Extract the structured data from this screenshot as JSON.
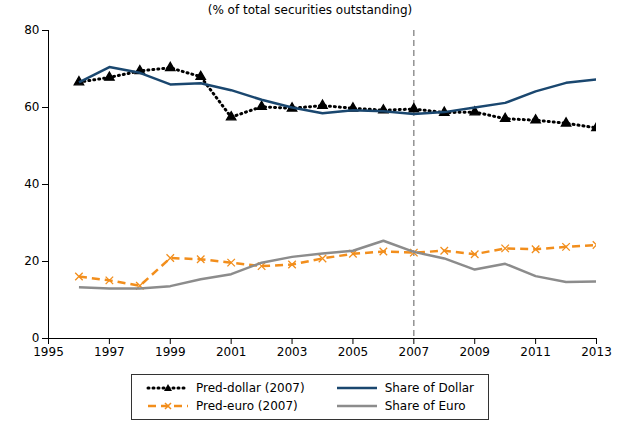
{
  "chart_data": {
    "type": "line",
    "title": "(% of total securities outstanding)",
    "x": [
      1996,
      1997,
      1998,
      1999,
      2000,
      2001,
      2002,
      2003,
      2004,
      2005,
      2006,
      2007,
      2008,
      2009,
      2010,
      2011,
      2012,
      2013
    ],
    "series": [
      {
        "name": "Pred-dollar (2007)",
        "color": "#000000",
        "line_style": "dotted",
        "marker": "triangle",
        "values": [
          66.6,
          67.8,
          69.5,
          70.3,
          68.0,
          57.5,
          60.2,
          59.8,
          60.5,
          59.8,
          59.3,
          59.6,
          58.7,
          58.8,
          57.1,
          56.7,
          55.9,
          54.7
        ]
      },
      {
        "name": "Share of Dollar",
        "color": "#1a476f",
        "line_style": "solid",
        "values": [
          66.5,
          70.5,
          69.0,
          66.0,
          66.3,
          64.5,
          62.0,
          60.0,
          58.5,
          59.3,
          59.0,
          58.3,
          58.8,
          60.0,
          61.2,
          64.2,
          66.4,
          67.3
        ]
      },
      {
        "name": "Pred-euro (2007)",
        "color": "#f28e1c",
        "line_style": "dashed",
        "marker": "x",
        "values": [
          16.1,
          15.1,
          13.7,
          20.9,
          20.6,
          19.7,
          18.8,
          19.2,
          20.8,
          22.0,
          22.6,
          22.3,
          22.8,
          21.9,
          23.4,
          23.2,
          23.8,
          24.3
        ]
      },
      {
        "name": "Share of Euro",
        "color": "#8c8c8c",
        "line_style": "solid",
        "values": [
          13.3,
          13.0,
          13.0,
          13.6,
          15.4,
          16.7,
          19.7,
          21.2,
          22.1,
          22.8,
          25.4,
          22.5,
          20.8,
          17.9,
          19.4,
          16.2,
          14.7,
          14.8
        ]
      }
    ],
    "xlim": [
      1995,
      2013
    ],
    "xticks": [
      1995,
      1997,
      1999,
      2001,
      2003,
      2005,
      2007,
      2009,
      2011,
      2013
    ],
    "ylim": [
      0,
      80
    ],
    "yticks": [
      0,
      20,
      40,
      60,
      80
    ],
    "vline": 2007,
    "grid": false,
    "legend": "bottom"
  }
}
